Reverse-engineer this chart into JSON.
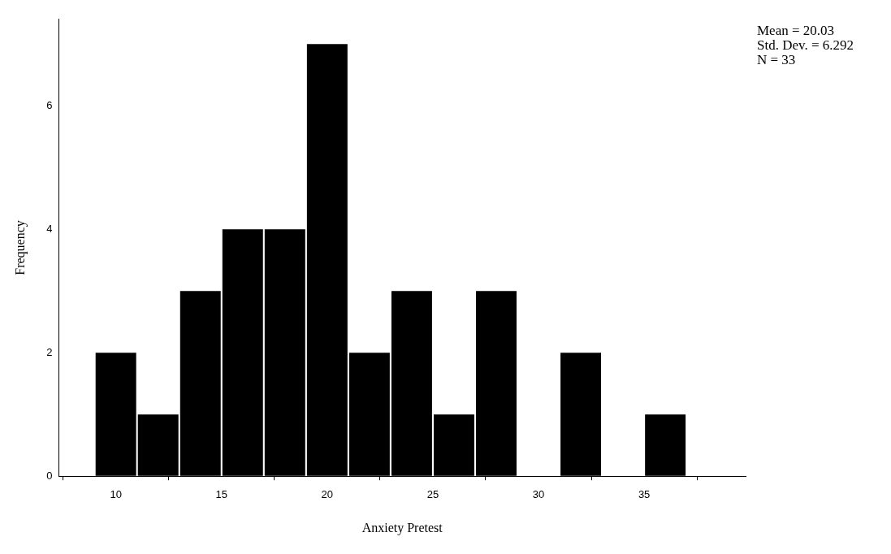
{
  "chart_data": {
    "type": "histogram",
    "xlabel": "Anxiety Pretest",
    "ylabel": "Frequency",
    "bins": [
      9,
      11,
      13,
      15,
      17,
      19,
      21,
      23,
      25,
      27,
      29,
      31,
      33,
      35,
      37
    ],
    "values": [
      2,
      1,
      3,
      4,
      4,
      7,
      2,
      3,
      1,
      3,
      0,
      2,
      0,
      1
    ],
    "color": "#000000",
    "xlim": [
      7.3,
      39.8
    ],
    "xticks": [
      10,
      15,
      20,
      25,
      30,
      35
    ],
    "ylim": [
      0,
      7.4
    ],
    "yticks": [
      0,
      2,
      4,
      6
    ],
    "grid": false,
    "legend": false,
    "annotations": [
      "Mean = 20.03",
      "Std. Dev. = 6.292",
      "N = 33"
    ]
  }
}
